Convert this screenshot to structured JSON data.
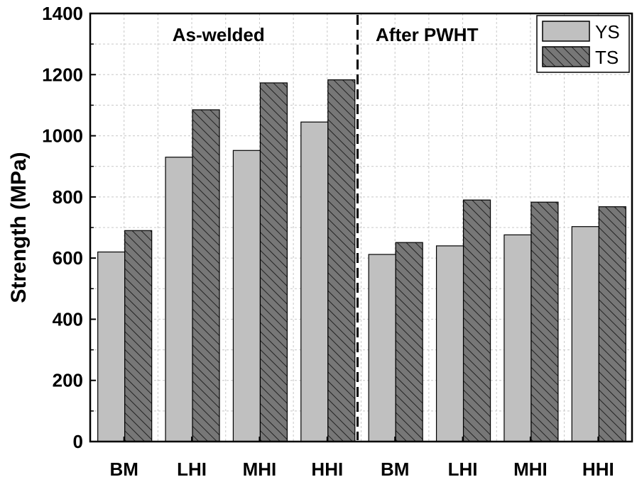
{
  "chart_data": {
    "type": "bar",
    "ylabel": "Strength (MPa)",
    "xlabel": "",
    "ylim": [
      0,
      1400
    ],
    "yticks": [
      0,
      200,
      400,
      600,
      800,
      1000,
      1200,
      1400
    ],
    "grid": true,
    "legend_position": "top-right",
    "groups": [
      {
        "label": "As-welded",
        "categories": [
          "BM",
          "LHI",
          "MHI",
          "HHI"
        ]
      },
      {
        "label": "After PWHT",
        "categories": [
          "BM",
          "LHI",
          "MHI",
          "HHI"
        ]
      }
    ],
    "categories": [
      "BM",
      "LHI",
      "MHI",
      "HHI",
      "BM",
      "LHI",
      "MHI",
      "HHI"
    ],
    "series": [
      {
        "name": "YS",
        "color": "#c0c0c0",
        "pattern": "solid",
        "values": [
          620,
          930,
          952,
          1045,
          612,
          640,
          676,
          703
        ]
      },
      {
        "name": "TS",
        "color": "#777777",
        "pattern": "hatched",
        "values": [
          690,
          1085,
          1173,
          1183,
          651,
          790,
          783,
          768
        ]
      }
    ]
  }
}
